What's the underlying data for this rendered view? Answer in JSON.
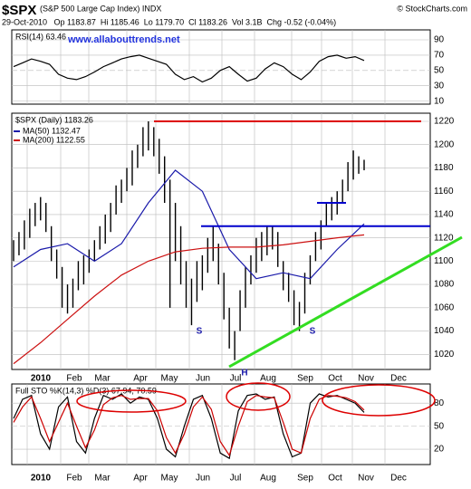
{
  "header": {
    "symbol": "$SPX",
    "name": "(S&P 500 Large Cap Index) INDX",
    "source": "© StockCharts.com",
    "quote": "29-Oct-2010   Op 1183.87  Hi 1185.46  Lo 1179.70  Cl 1183.26  Vol 3.1B  Chg -0.52 (-0.04%)"
  },
  "xaxis": {
    "labels": [
      "2010",
      "Feb",
      "Mar",
      "Apr",
      "May",
      "Jun",
      "Jul",
      "Aug",
      "Sep",
      "Oct",
      "Nov",
      "Dec"
    ]
  },
  "chart_data": [
    {
      "type": "line",
      "label": "RSI(14) 63.46",
      "watermark": "www.allabouttrends.net",
      "ylim": [
        6,
        103
      ],
      "yticks": [
        90,
        70,
        50,
        30,
        10
      ],
      "series": [
        {
          "color": "#000000",
          "values": [
            55,
            60,
            65,
            62,
            58,
            45,
            40,
            38,
            42,
            48,
            55,
            60,
            65,
            68,
            70,
            66,
            62,
            58,
            45,
            38,
            42,
            35,
            40,
            50,
            55,
            45,
            36,
            40,
            52,
            60,
            55,
            45,
            38,
            48,
            62,
            68,
            70,
            66,
            68,
            63
          ]
        }
      ]
    },
    {
      "type": "ohlc",
      "label": "$SPX (Daily) 1183.26",
      "color": "#000000",
      "ylim": [
        1007,
        1227
      ],
      "yticks": [
        1220,
        1200,
        1180,
        1160,
        1140,
        1120,
        1100,
        1080,
        1060,
        1040,
        1020
      ],
      "high": [
        1118,
        1125,
        1135,
        1145,
        1150,
        1155,
        1150,
        1130,
        1110,
        1095,
        1080,
        1085,
        1100,
        1105,
        1110,
        1118,
        1130,
        1140,
        1150,
        1165,
        1170,
        1180,
        1195,
        1200,
        1215,
        1220,
        1215,
        1205,
        1190,
        1170,
        1150,
        1130,
        1100,
        1085,
        1100,
        1105,
        1120,
        1130,
        1115,
        1090,
        1060,
        1040,
        1075,
        1095,
        1105,
        1120,
        1125,
        1130,
        1130,
        1125,
        1100,
        1090,
        1075,
        1065,
        1090,
        1105,
        1125,
        1135,
        1150,
        1155,
        1160,
        1170,
        1185,
        1195,
        1190,
        1187
      ],
      "low": [
        1100,
        1105,
        1110,
        1120,
        1130,
        1135,
        1125,
        1100,
        1085,
        1060,
        1055,
        1060,
        1075,
        1080,
        1090,
        1100,
        1110,
        1115,
        1125,
        1140,
        1150,
        1160,
        1165,
        1180,
        1190,
        1195,
        1190,
        1175,
        1150,
        1060,
        1100,
        1080,
        1060,
        1045,
        1065,
        1075,
        1090,
        1100,
        1080,
        1050,
        1025,
        1015,
        1040,
        1060,
        1080,
        1090,
        1100,
        1105,
        1110,
        1095,
        1075,
        1065,
        1045,
        1040,
        1055,
        1080,
        1100,
        1110,
        1130,
        1135,
        1140,
        1150,
        1160,
        1170,
        1175,
        1178
      ],
      "series": [
        {
          "name": "MA(50) 1132.47",
          "color": "#1a1aaa",
          "values": [
            1095,
            1110,
            1115,
            1100,
            1115,
            1150,
            1178,
            1160,
            1110,
            1085,
            1090,
            1085,
            1110,
            1132
          ]
        },
        {
          "name": "MA(200) 1122.55",
          "color": "#cc1111",
          "values": [
            1012,
            1030,
            1050,
            1070,
            1088,
            1100,
            1108,
            1111,
            1112,
            1112,
            1114,
            1117,
            1120,
            1122.5
          ]
        }
      ],
      "levels": [
        {
          "value": 1220,
          "color": "#dd0000"
        },
        {
          "value": 1130,
          "color": "#0000cc"
        },
        {
          "value": 1150,
          "color": "#0000cc"
        }
      ],
      "annotations": [
        "S",
        "H",
        "S"
      ]
    },
    {
      "type": "line",
      "label": "Full STO %K(14,3) %D(3) 67.94, 70.59",
      "ylim": [
        0,
        105
      ],
      "yticks": [
        80,
        50,
        20
      ],
      "series": [
        {
          "color": "#000000",
          "values": [
            60,
            85,
            90,
            40,
            20,
            75,
            88,
            30,
            15,
            60,
            90,
            85,
            92,
            80,
            88,
            85,
            60,
            20,
            10,
            50,
            85,
            90,
            60,
            15,
            8,
            70,
            90,
            92,
            85,
            88,
            40,
            10,
            15,
            80,
            92,
            88,
            90,
            85,
            80,
            68
          ]
        },
        {
          "color": "#cc0000",
          "values": [
            55,
            75,
            88,
            60,
            30,
            55,
            80,
            50,
            22,
            45,
            78,
            87,
            90,
            85,
            86,
            86,
            70,
            35,
            15,
            40,
            75,
            88,
            72,
            30,
            12,
            50,
            82,
            90,
            88,
            87,
            55,
            20,
            15,
            60,
            85,
            90,
            89,
            87,
            82,
            71
          ]
        }
      ]
    }
  ]
}
